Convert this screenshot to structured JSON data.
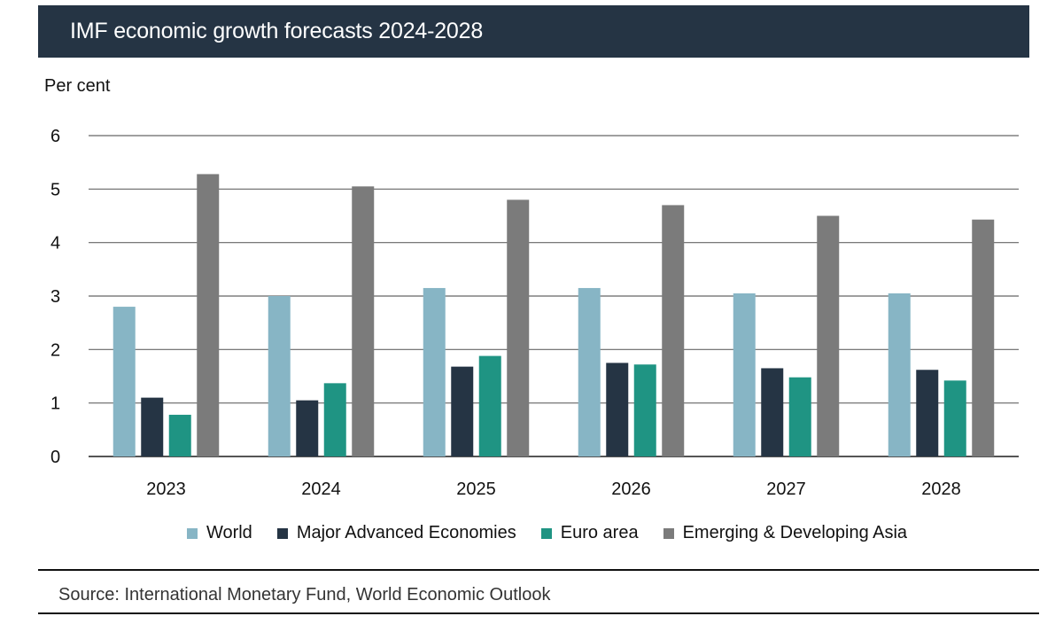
{
  "header": {
    "title": "IMF economic growth forecasts 2024-2028"
  },
  "unit_label": "Per cent",
  "source": "Source: International Monetary Fund, World Economic Outlook",
  "colors": {
    "header_bg": "#253444",
    "world": "#87b5c5",
    "major_advanced": "#253444",
    "euro_area": "#1f9483",
    "emerging_asia": "#7b7b7b"
  },
  "chart_data": {
    "type": "bar",
    "title": "IMF economic growth forecasts 2024-2028",
    "ylabel": "Per cent",
    "xlabel": "",
    "ylim": [
      0,
      6
    ],
    "yticks": [
      0,
      1,
      2,
      3,
      4,
      5,
      6
    ],
    "grid": true,
    "legend_position": "bottom",
    "categories": [
      "2023",
      "2024",
      "2025",
      "2026",
      "2027",
      "2028"
    ],
    "series": [
      {
        "name": "World",
        "color": "#87b5c5",
        "values": [
          2.8,
          3.0,
          3.15,
          3.15,
          3.05,
          3.05
        ]
      },
      {
        "name": "Major Advanced Economies",
        "color": "#253444",
        "values": [
          1.1,
          1.05,
          1.68,
          1.75,
          1.65,
          1.62
        ]
      },
      {
        "name": "Euro area",
        "color": "#1f9483",
        "values": [
          0.78,
          1.37,
          1.88,
          1.72,
          1.48,
          1.42
        ]
      },
      {
        "name": "Emerging & Developing Asia",
        "color": "#7b7b7b",
        "values": [
          5.28,
          5.05,
          4.8,
          4.7,
          4.5,
          4.43
        ]
      }
    ]
  }
}
